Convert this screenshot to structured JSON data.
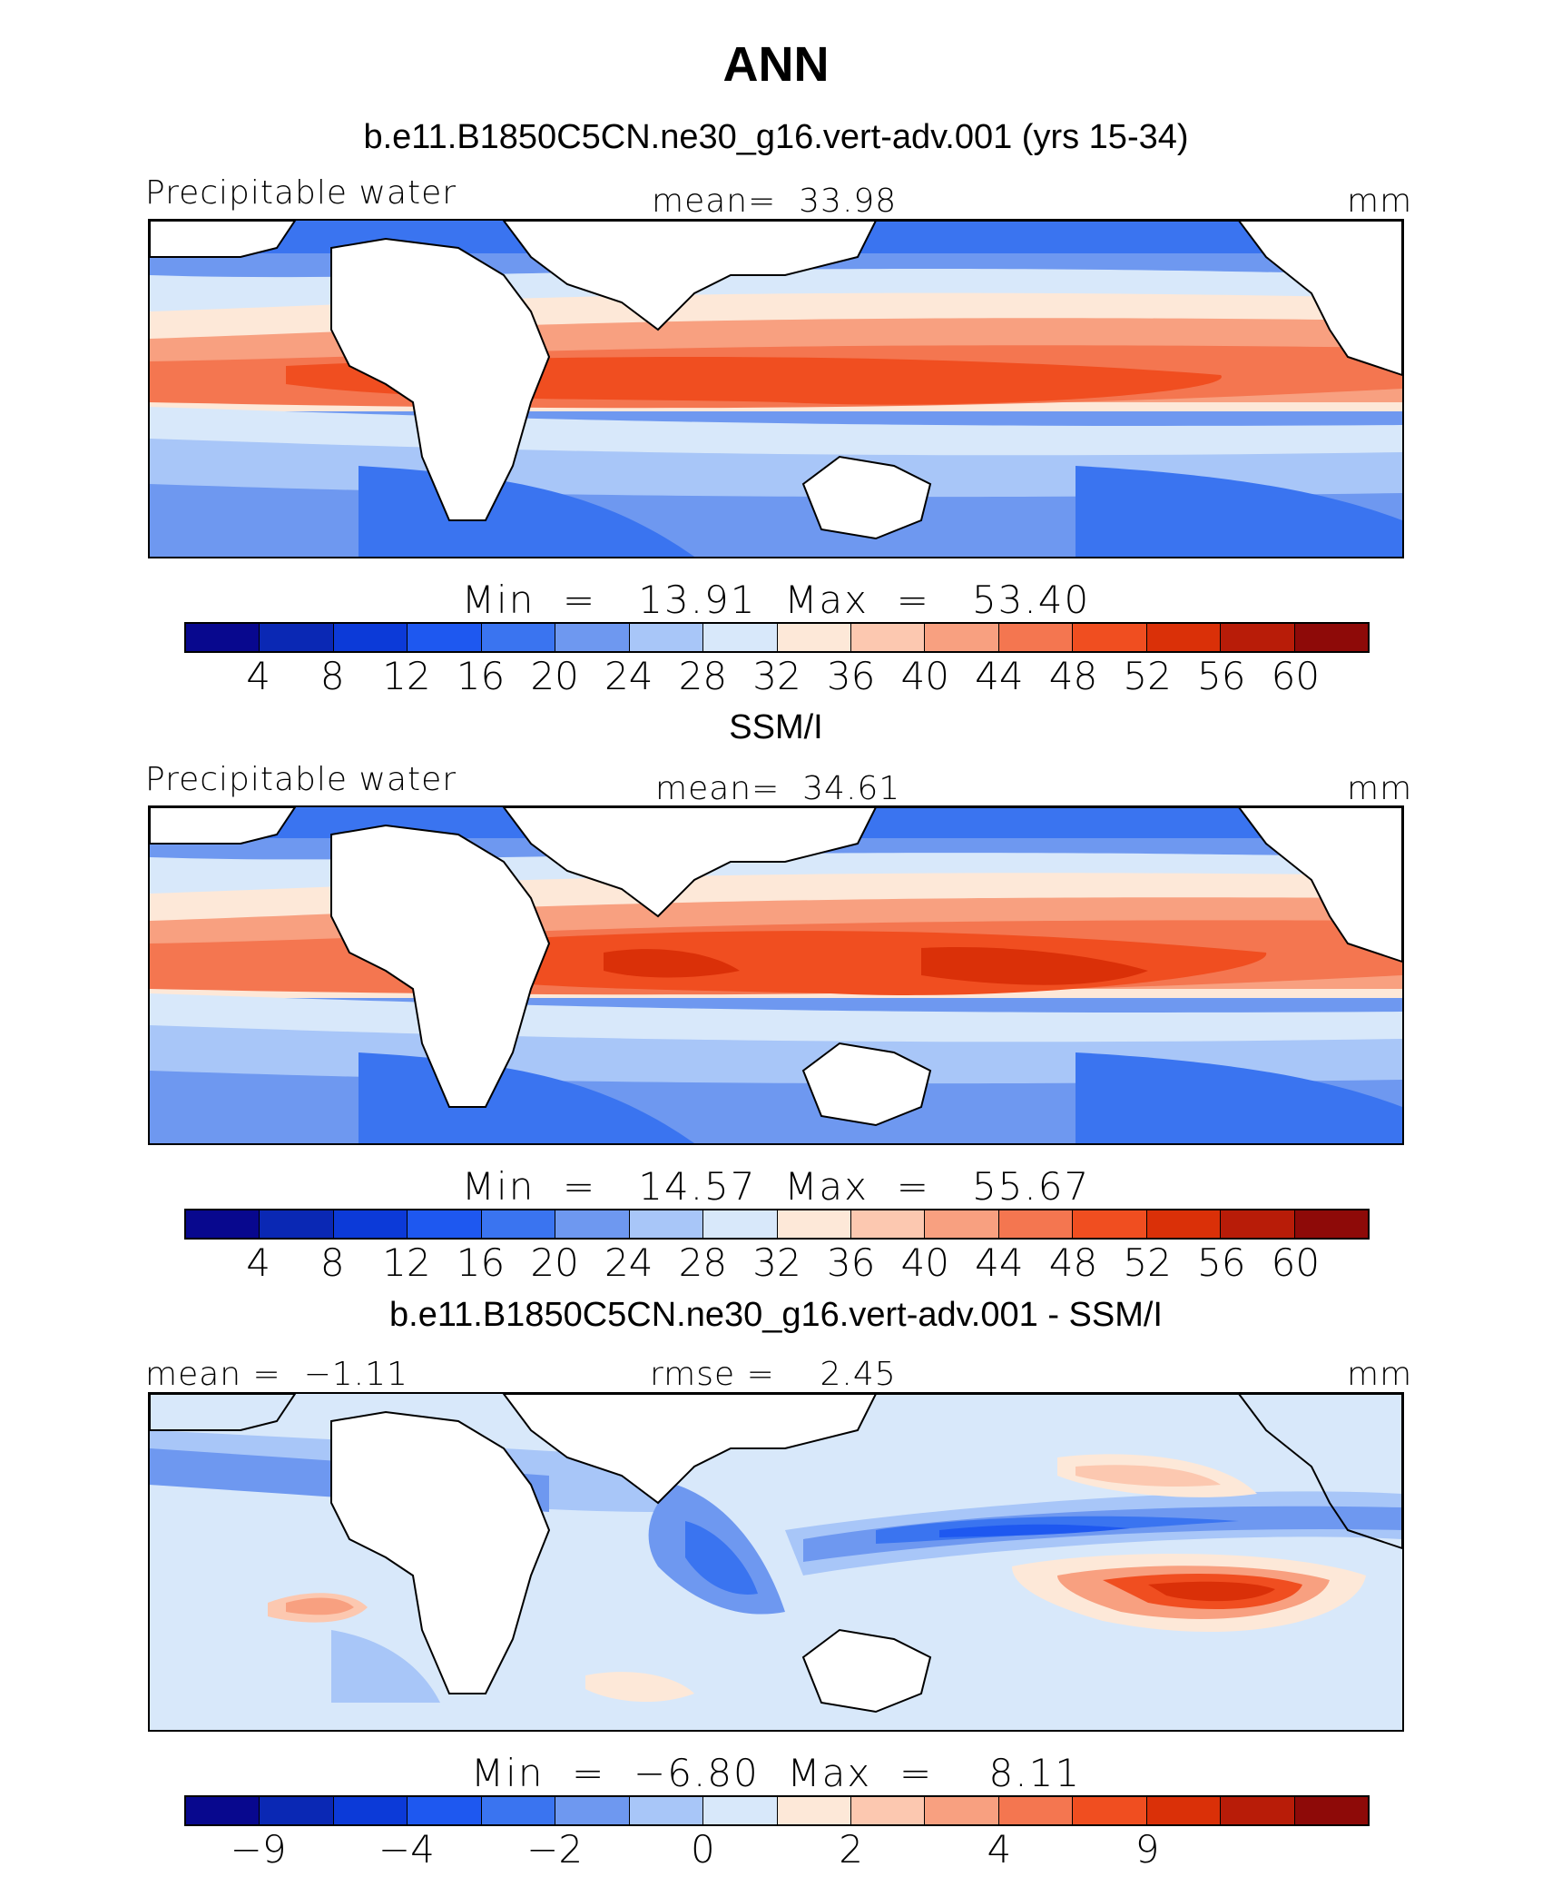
{
  "title": "ANN",
  "colors": [
    "#08088e",
    "#0a28b4",
    "#0c3ad8",
    "#1e58f0",
    "#3a74f0",
    "#6e98f0",
    "#a8c6f8",
    "#d8e8fa",
    "#fde8d8",
    "#fcc8b0",
    "#f8a080",
    "#f47650",
    "#f04e20",
    "#da3008",
    "#b81c08",
    "#8e0a08"
  ],
  "chart_data": [
    {
      "type": "heatmap",
      "title": "b.e11.B1850C5CN.ne30_g16.vert-adv.001 (yrs 15-34)",
      "variable": "Precipitable water",
      "mean_text": "mean=  33.98",
      "units": "mm",
      "min_max_text": "Min  =   13.91  Max  =   53.40",
      "min": 13.91,
      "max": 53.4,
      "levels": [
        "4",
        "8",
        "12",
        "16",
        "20",
        "24",
        "28",
        "32",
        "36",
        "40",
        "44",
        "48",
        "52",
        "56",
        "60"
      ]
    },
    {
      "type": "heatmap",
      "title": "SSM/I",
      "variable": "Precipitable water",
      "mean_text": "mean=  34.61",
      "units": "mm",
      "min_max_text": "Min  =   14.57  Max  =   55.67",
      "min": 14.57,
      "max": 55.67,
      "levels": [
        "4",
        "8",
        "12",
        "16",
        "20",
        "24",
        "28",
        "32",
        "36",
        "40",
        "44",
        "48",
        "52",
        "56",
        "60"
      ]
    },
    {
      "type": "heatmap",
      "title": "b.e11.B1850C5CN.ne30_g16.vert-adv.001 - SSM/I",
      "mean_text": "mean =  −1.11",
      "rmse_text": "rmse =    2.45",
      "units": "mm",
      "min_max_text": "Min  =  −6.80  Max  =    8.11",
      "min": -6.8,
      "max": 8.11,
      "levels": [
        "−9",
        "",
        "−4",
        "",
        "−2",
        "",
        "0",
        "",
        "2",
        "",
        "4",
        "",
        "9",
        "",
        ""
      ]
    }
  ]
}
